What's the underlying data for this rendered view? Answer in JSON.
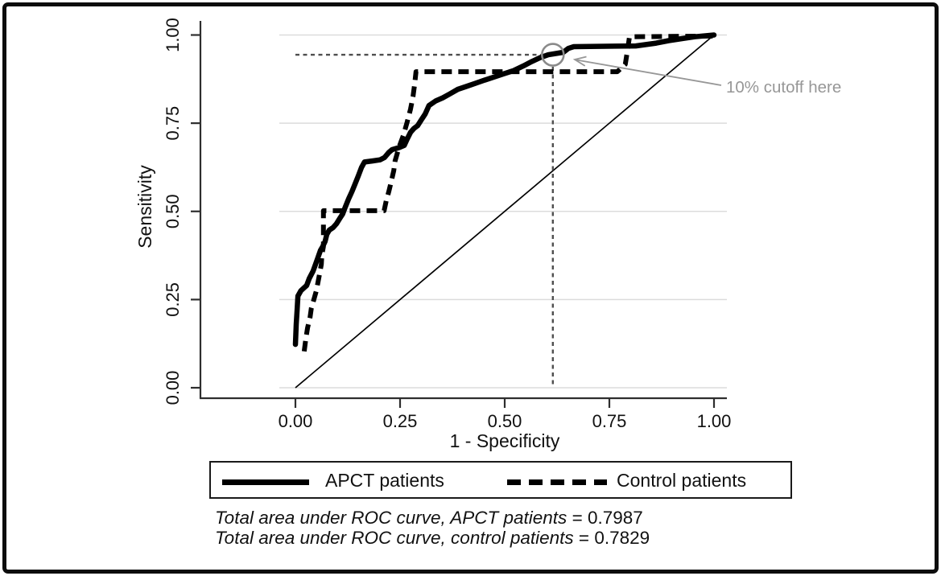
{
  "colors": {
    "curve": "#000000",
    "grid": "#dcdcdc",
    "axis": "#2e2e2e",
    "cutoff_dash": "#4f4f4f",
    "annotation_gray": "#979797",
    "frame": "#0d0d0d"
  },
  "legend": {
    "items": [
      {
        "label": "APCT patients",
        "style": "solid"
      },
      {
        "label": "Control patients",
        "style": "dashed"
      }
    ]
  },
  "chart_data": {
    "type": "line",
    "subtype": "roc-curve",
    "title": "",
    "xlabel": "1 - Specificity",
    "ylabel": "Sensitivity",
    "xlim": [
      0,
      1
    ],
    "ylim": [
      0,
      1
    ],
    "grid": "horizontal",
    "legend_position": "bottom",
    "xticks": {
      "values": [
        0,
        0.25,
        0.5,
        0.75,
        1
      ],
      "labels": [
        "0.00",
        "0.25",
        "0.50",
        "0.75",
        "1.00"
      ]
    },
    "yticks": {
      "values": [
        0,
        0.25,
        0.5,
        0.75,
        1
      ],
      "labels": [
        "0.00",
        "0.25",
        "0.50",
        "0.75",
        "1.00"
      ]
    },
    "series": [
      {
        "name": "APCT patients",
        "style": "solid",
        "points": [
          [
            0.0,
            0.123
          ],
          [
            0.002,
            0.18
          ],
          [
            0.004,
            0.22
          ],
          [
            0.006,
            0.26
          ],
          [
            0.013,
            0.275
          ],
          [
            0.027,
            0.29
          ],
          [
            0.033,
            0.31
          ],
          [
            0.042,
            0.33
          ],
          [
            0.048,
            0.35
          ],
          [
            0.054,
            0.37
          ],
          [
            0.06,
            0.39
          ],
          [
            0.065,
            0.4
          ],
          [
            0.071,
            0.415
          ],
          [
            0.075,
            0.435
          ],
          [
            0.081,
            0.447
          ],
          [
            0.09,
            0.454
          ],
          [
            0.098,
            0.465
          ],
          [
            0.106,
            0.48
          ],
          [
            0.113,
            0.493
          ],
          [
            0.119,
            0.512
          ],
          [
            0.127,
            0.535
          ],
          [
            0.135,
            0.556
          ],
          [
            0.142,
            0.576
          ],
          [
            0.15,
            0.6
          ],
          [
            0.158,
            0.625
          ],
          [
            0.165,
            0.64
          ],
          [
            0.185,
            0.643
          ],
          [
            0.202,
            0.646
          ],
          [
            0.213,
            0.653
          ],
          [
            0.223,
            0.667
          ],
          [
            0.231,
            0.675
          ],
          [
            0.248,
            0.681
          ],
          [
            0.26,
            0.687
          ],
          [
            0.267,
            0.705
          ],
          [
            0.275,
            0.724
          ],
          [
            0.283,
            0.735
          ],
          [
            0.292,
            0.743
          ],
          [
            0.3,
            0.758
          ],
          [
            0.31,
            0.776
          ],
          [
            0.319,
            0.8
          ],
          [
            0.335,
            0.813
          ],
          [
            0.352,
            0.822
          ],
          [
            0.369,
            0.833
          ],
          [
            0.388,
            0.846
          ],
          [
            0.408,
            0.854
          ],
          [
            0.43,
            0.863
          ],
          [
            0.452,
            0.872
          ],
          [
            0.475,
            0.881
          ],
          [
            0.498,
            0.89
          ],
          [
            0.521,
            0.899
          ],
          [
            0.544,
            0.912
          ],
          [
            0.565,
            0.925
          ],
          [
            0.585,
            0.936
          ],
          [
            0.604,
            0.944
          ],
          [
            0.64,
            0.951
          ],
          [
            0.652,
            0.962
          ],
          [
            0.665,
            0.967
          ],
          [
            0.813,
            0.969
          ],
          [
            0.862,
            0.977
          ],
          [
            0.892,
            0.984
          ],
          [
            0.925,
            0.99
          ],
          [
            0.954,
            0.995
          ],
          [
            1.0,
            1.0
          ]
        ]
      },
      {
        "name": "Control patients",
        "style": "dashed",
        "points": [
          [
            0.021,
            0.103
          ],
          [
            0.025,
            0.14
          ],
          [
            0.029,
            0.17
          ],
          [
            0.035,
            0.2
          ],
          [
            0.038,
            0.226
          ],
          [
            0.044,
            0.25
          ],
          [
            0.05,
            0.275
          ],
          [
            0.054,
            0.3
          ],
          [
            0.058,
            0.325
          ],
          [
            0.062,
            0.35
          ],
          [
            0.063,
            0.376
          ],
          [
            0.067,
            0.4
          ],
          [
            0.067,
            0.502
          ],
          [
            0.212,
            0.502
          ],
          [
            0.217,
            0.53
          ],
          [
            0.223,
            0.556
          ],
          [
            0.229,
            0.585
          ],
          [
            0.235,
            0.616
          ],
          [
            0.238,
            0.643
          ],
          [
            0.248,
            0.684
          ],
          [
            0.258,
            0.716
          ],
          [
            0.267,
            0.753
          ],
          [
            0.275,
            0.79
          ],
          [
            0.281,
            0.826
          ],
          [
            0.285,
            0.862
          ],
          [
            0.288,
            0.896
          ],
          [
            0.769,
            0.896
          ],
          [
            0.788,
            0.917
          ],
          [
            0.794,
            0.962
          ],
          [
            0.798,
            0.995
          ],
          [
            1.0,
            0.997
          ]
        ]
      }
    ],
    "reference_line": {
      "from": [
        0,
        0
      ],
      "to": [
        1,
        1
      ]
    },
    "cutoff_marker": {
      "x": 0.615,
      "y": 0.944,
      "shape": "circle"
    },
    "annotation": {
      "text": "10% cutoff here"
    },
    "auc": [
      {
        "label": "Total area under ROC curve, APCT patients",
        "value": "= 0.7987"
      },
      {
        "label": "Total area under ROC curve, control patients",
        "value": "= 0.7829"
      }
    ]
  }
}
